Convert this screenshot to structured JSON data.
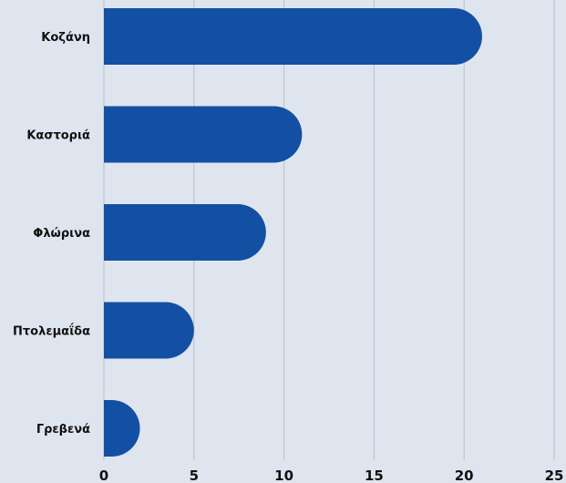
{
  "chart_data": {
    "type": "bar",
    "orientation": "horizontal",
    "categories": [
      "Κοζάνη",
      "Καστοριά",
      "Φλώρινα",
      "Πτολεμαΐδα",
      "Γρεβενά"
    ],
    "values": [
      21,
      11,
      9,
      5,
      2
    ],
    "xlim": [
      0,
      25
    ],
    "xticks": [
      "0",
      "5",
      "10",
      "15",
      "20",
      "25"
    ],
    "title": "",
    "xlabel": "",
    "ylabel": "",
    "grid": "vertical",
    "legend": "none",
    "colors": {
      "bar": "#1350a3",
      "grid": "#b9c0cb",
      "background": "#dfe5ef",
      "text": "#111111"
    }
  }
}
